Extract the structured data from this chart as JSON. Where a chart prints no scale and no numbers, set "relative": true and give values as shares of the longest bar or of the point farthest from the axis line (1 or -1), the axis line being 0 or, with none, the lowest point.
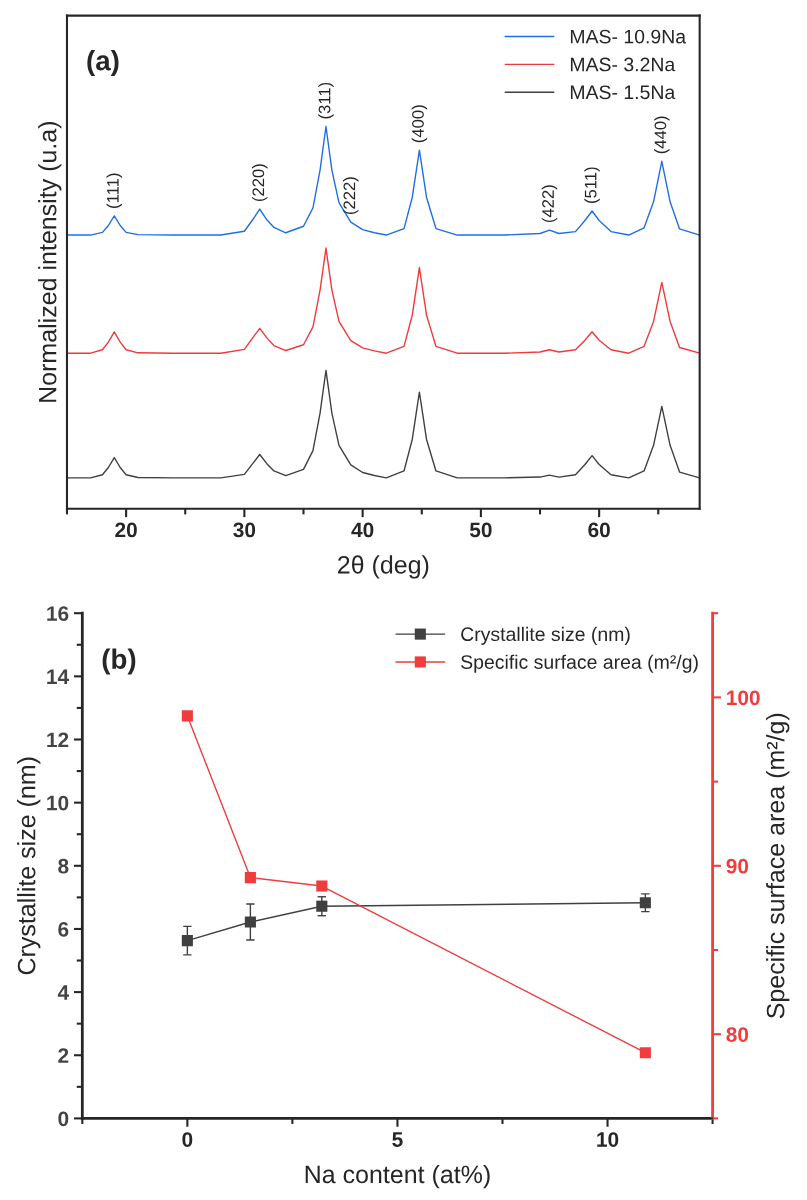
{
  "chart_data": [
    {
      "type": "line",
      "relative": true,
      "xlabel": "2θ (deg)",
      "ylabel": "Normalized intensity (u.a)",
      "xlim": [
        15,
        68.5
      ],
      "xticks": [
        20,
        30,
        40,
        50,
        60
      ],
      "legend": "top right",
      "x": [
        15,
        16,
        17,
        18,
        18.5,
        19,
        19.5,
        20,
        21,
        24,
        28,
        30,
        30.7,
        31.3,
        31.9,
        32.5,
        33.5,
        35,
        35.8,
        36.4,
        36.9,
        37.4,
        38,
        39,
        40,
        41,
        42,
        43.5,
        44.2,
        44.8,
        45.4,
        46.2,
        48,
        52,
        55,
        55.8,
        56.6,
        58,
        58.8,
        59.4,
        60,
        61,
        62.5,
        63.8,
        64.6,
        65.3,
        66,
        66.8,
        68.5
      ],
      "series": [
        {
          "name": "MAS- 10.9Na",
          "color": "#1f6fe0",
          "values": [
            0.716,
            0.716,
            0.716,
            0.723,
            0.741,
            0.766,
            0.741,
            0.723,
            0.717,
            0.716,
            0.716,
            0.726,
            0.756,
            0.784,
            0.756,
            0.736,
            0.722,
            0.739,
            0.787,
            0.886,
            1.0,
            0.886,
            0.801,
            0.75,
            0.73,
            0.722,
            0.716,
            0.733,
            0.815,
            0.938,
            0.815,
            0.733,
            0.716,
            0.716,
            0.72,
            0.729,
            0.72,
            0.725,
            0.754,
            0.779,
            0.754,
            0.725,
            0.716,
            0.735,
            0.803,
            0.909,
            0.803,
            0.732,
            0.716
          ]
        },
        {
          "name": "MAS- 3.2Na",
          "color": "#f03a3a",
          "values": [
            0.407,
            0.407,
            0.407,
            0.416,
            0.436,
            0.463,
            0.436,
            0.416,
            0.408,
            0.407,
            0.407,
            0.417,
            0.447,
            0.472,
            0.447,
            0.427,
            0.414,
            0.429,
            0.476,
            0.572,
            0.682,
            0.572,
            0.49,
            0.44,
            0.421,
            0.413,
            0.407,
            0.425,
            0.507,
            0.631,
            0.507,
            0.425,
            0.407,
            0.407,
            0.41,
            0.416,
            0.41,
            0.416,
            0.441,
            0.463,
            0.441,
            0.416,
            0.407,
            0.425,
            0.49,
            0.592,
            0.49,
            0.422,
            0.407
          ]
        },
        {
          "name": "MAS- 1.5Na",
          "color": "#404040",
          "values": [
            0.081,
            0.081,
            0.081,
            0.089,
            0.108,
            0.134,
            0.108,
            0.089,
            0.082,
            0.081,
            0.081,
            0.09,
            0.118,
            0.142,
            0.118,
            0.099,
            0.087,
            0.103,
            0.152,
            0.25,
            0.362,
            0.25,
            0.166,
            0.115,
            0.095,
            0.087,
            0.081,
            0.099,
            0.182,
            0.305,
            0.182,
            0.099,
            0.081,
            0.081,
            0.083,
            0.088,
            0.083,
            0.089,
            0.116,
            0.139,
            0.116,
            0.089,
            0.081,
            0.099,
            0.166,
            0.268,
            0.166,
            0.096,
            0.081
          ]
        }
      ],
      "annotations": [
        "(a)",
        {
          "text": "(111)",
          "x": 19.0,
          "y": 0.766
        },
        {
          "text": "(220)",
          "x": 31.3,
          "y": 0.784
        },
        {
          "text": "(311)",
          "x": 36.9,
          "y": 1.0
        },
        {
          "text": "(222)",
          "x": 39,
          "y": 0.75
        },
        {
          "text": "(400)",
          "x": 44.8,
          "y": 0.938
        },
        {
          "text": "(422)",
          "x": 55.8,
          "y": 0.729
        },
        {
          "text": "(511)",
          "x": 59.4,
          "y": 0.779
        },
        {
          "text": "(440)",
          "x": 65.3,
          "y": 0.909
        }
      ]
    },
    {
      "type": "line",
      "xlabel": "Na content (at%)",
      "ylabel": "Crystallite size (nm)",
      "y2label": "Specific surface area (m²/g)",
      "xlim": [
        -2.5,
        12.5
      ],
      "xticks": [
        0,
        5,
        10
      ],
      "ylim": [
        0,
        16
      ],
      "yticks": [
        0,
        2,
        4,
        6,
        8,
        10,
        12,
        14,
        16
      ],
      "y2lim": [
        75,
        105
      ],
      "y2ticks": [
        80,
        90,
        100
      ],
      "legend": "top right",
      "marker": "square",
      "x": [
        0,
        1.5,
        3.2,
        10.9
      ],
      "series": [
        {
          "name": "Crystallite size (nm)",
          "color": "#404040",
          "values": [
            5.63,
            6.22,
            6.72,
            6.83
          ],
          "errors": [
            0.45,
            0.57,
            0.3,
            0.28
          ]
        },
        {
          "name": "Specific surface area (m²/g)",
          "color": "#f03c3c",
          "axis": "y2",
          "values": [
            98.9,
            89.3,
            88.8,
            78.9
          ]
        }
      ],
      "annotations": [
        "(b)"
      ]
    }
  ]
}
